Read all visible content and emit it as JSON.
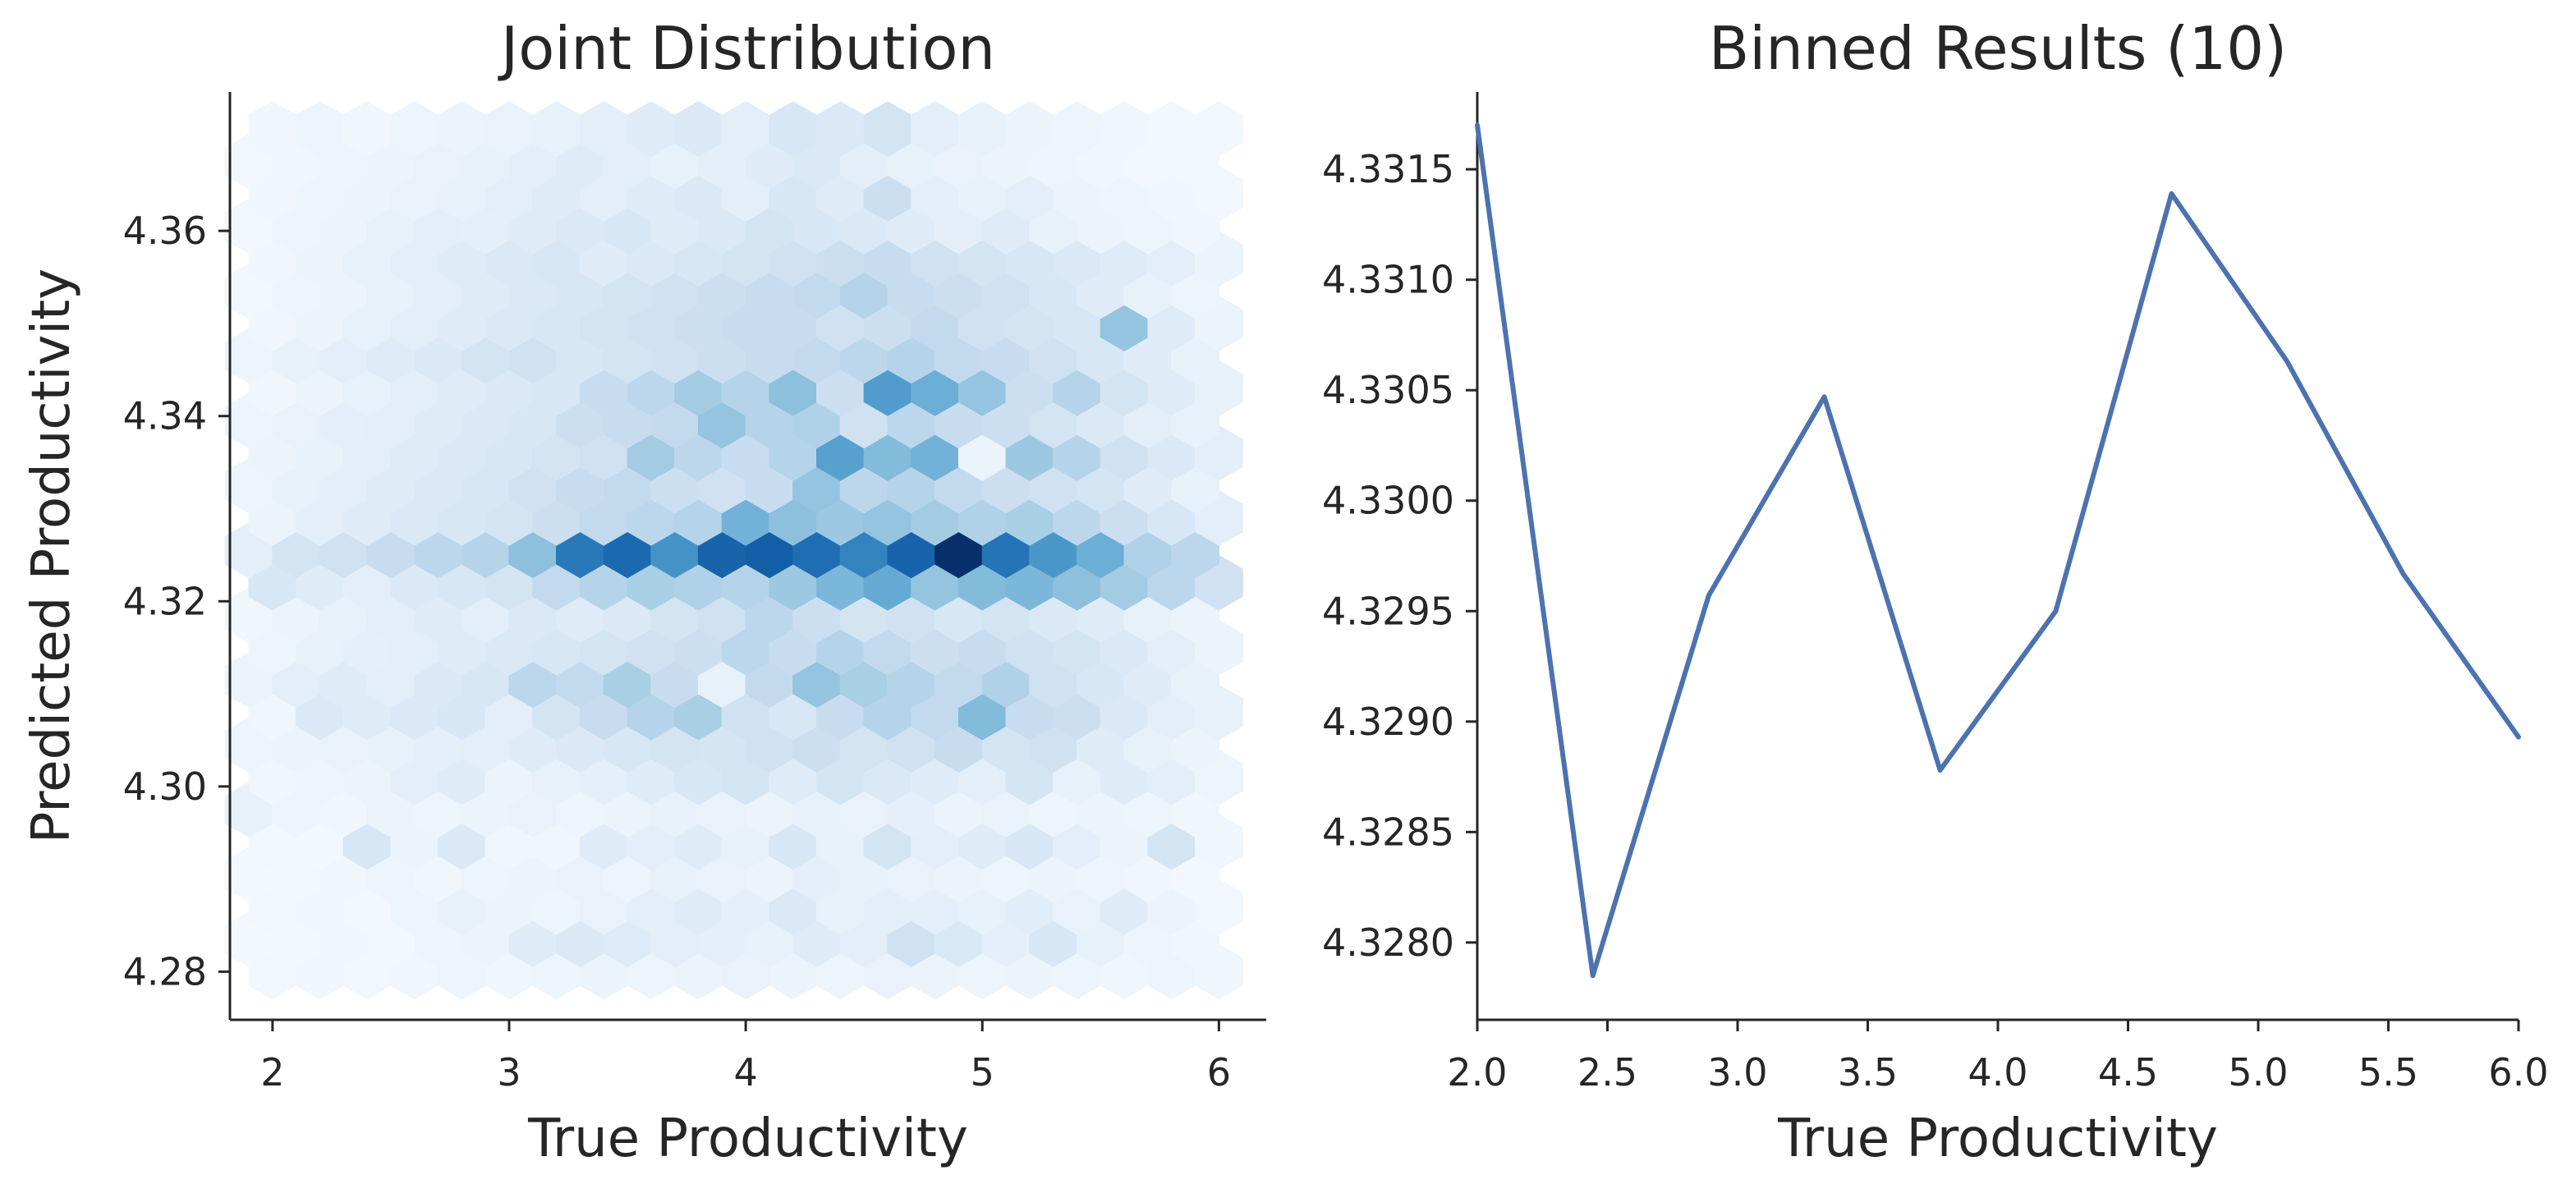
{
  "chart_data": [
    {
      "type": "heatmap",
      "subtype": "hexbin",
      "title": "Joint Distribution",
      "xlabel": "True Productivity",
      "ylabel": "Predicted Productivity",
      "xlim": [
        1.82,
        6.2
      ],
      "ylim": [
        4.2748,
        4.375
      ],
      "xticks": [
        2,
        3,
        4,
        5,
        6
      ],
      "xtick_labels": [
        "2",
        "3",
        "4",
        "5",
        "6"
      ],
      "yticks": [
        4.28,
        4.3,
        4.32,
        4.34,
        4.36
      ],
      "ytick_labels": [
        "4.28",
        "4.30",
        "4.32",
        "4.34",
        "4.36"
      ],
      "colormap": [
        "#f7fbff",
        "#deebf7",
        "#c6dbef",
        "#9ecae1",
        "#6baed6",
        "#4292c6",
        "#2171b5",
        "#08519c",
        "#08306b"
      ],
      "grid": {
        "x_start": 2.0,
        "dx": 0.2,
        "cols": 21,
        "y_start": 4.28,
        "dy": 0.0035,
        "rows": 27
      },
      "intensity_rows": [
        [
          0.03,
          0.04,
          0.03,
          0.04,
          0.05,
          0.04,
          0.05,
          0.06,
          0.05,
          0.06,
          0.07,
          0.06,
          0.05,
          0.07,
          0.06,
          0.05,
          0.06,
          0.05,
          0.04,
          0.05,
          0.04
        ],
        [
          0.02,
          0.03,
          0.04,
          0.03,
          0.05,
          0.06,
          0.12,
          0.14,
          0.13,
          0.1,
          0.09,
          0.08,
          0.12,
          0.1,
          0.2,
          0.15,
          0.09,
          0.16,
          0.08,
          0.05,
          0.04
        ],
        [
          0.03,
          0.04,
          0.03,
          0.05,
          0.08,
          0.06,
          0.05,
          0.07,
          0.1,
          0.12,
          0.09,
          0.14,
          0.08,
          0.1,
          0.09,
          0.08,
          0.11,
          0.07,
          0.12,
          0.06,
          0.03
        ],
        [
          0.02,
          0.03,
          0.04,
          0.05,
          0.04,
          0.05,
          0.06,
          0.07,
          0.05,
          0.08,
          0.07,
          0.06,
          0.09,
          0.08,
          0.07,
          0.06,
          0.05,
          0.06,
          0.05,
          0.04,
          0.03
        ],
        [
          0.03,
          0.02,
          0.16,
          0.06,
          0.14,
          0.04,
          0.04,
          0.12,
          0.1,
          0.12,
          0.08,
          0.16,
          0.08,
          0.18,
          0.1,
          0.12,
          0.16,
          0.1,
          0.06,
          0.18,
          0.04
        ],
        [
          0.08,
          0.05,
          0.04,
          0.06,
          0.05,
          0.06,
          0.07,
          0.05,
          0.06,
          0.08,
          0.07,
          0.06,
          0.08,
          0.07,
          0.09,
          0.06,
          0.07,
          0.05,
          0.06,
          0.05,
          0.04
        ],
        [
          0.04,
          0.05,
          0.06,
          0.1,
          0.12,
          0.06,
          0.08,
          0.09,
          0.12,
          0.16,
          0.18,
          0.12,
          0.18,
          0.14,
          0.12,
          0.1,
          0.18,
          0.08,
          0.12,
          0.1,
          0.05
        ],
        [
          0.05,
          0.06,
          0.07,
          0.08,
          0.09,
          0.1,
          0.12,
          0.14,
          0.16,
          0.18,
          0.17,
          0.2,
          0.22,
          0.18,
          0.2,
          0.24,
          0.18,
          0.2,
          0.12,
          0.08,
          0.06
        ],
        [
          0.04,
          0.14,
          0.12,
          0.14,
          0.16,
          0.1,
          0.18,
          0.24,
          0.3,
          0.34,
          0.2,
          0.16,
          0.24,
          0.3,
          0.26,
          0.44,
          0.24,
          0.22,
          0.14,
          0.1,
          0.08
        ],
        [
          0.06,
          0.1,
          0.12,
          0.1,
          0.14,
          0.16,
          0.28,
          0.26,
          0.34,
          0.24,
          0.08,
          0.26,
          0.4,
          0.34,
          0.3,
          0.26,
          0.32,
          0.2,
          0.16,
          0.12,
          0.08
        ],
        [
          0.05,
          0.08,
          0.09,
          0.1,
          0.12,
          0.14,
          0.16,
          0.18,
          0.2,
          0.22,
          0.28,
          0.24,
          0.3,
          0.26,
          0.22,
          0.24,
          0.2,
          0.18,
          0.14,
          0.1,
          0.06
        ],
        [
          0.04,
          0.06,
          0.08,
          0.1,
          0.12,
          0.1,
          0.14,
          0.12,
          0.14,
          0.18,
          0.2,
          0.28,
          0.22,
          0.18,
          0.2,
          0.16,
          0.18,
          0.14,
          0.12,
          0.08,
          0.06
        ],
        [
          0.16,
          0.12,
          0.1,
          0.14,
          0.16,
          0.18,
          0.26,
          0.3,
          0.34,
          0.32,
          0.3,
          0.38,
          0.46,
          0.52,
          0.4,
          0.44,
          0.46,
          0.42,
          0.36,
          0.28,
          0.2
        ],
        [
          0.1,
          0.18,
          0.2,
          0.24,
          0.28,
          0.3,
          0.42,
          0.72,
          0.78,
          0.62,
          0.8,
          0.82,
          0.76,
          0.68,
          0.8,
          1.0,
          0.74,
          0.6,
          0.5,
          0.32,
          0.28
        ],
        [
          0.06,
          0.1,
          0.12,
          0.14,
          0.16,
          0.18,
          0.22,
          0.26,
          0.28,
          0.3,
          0.48,
          0.42,
          0.38,
          0.4,
          0.36,
          0.32,
          0.34,
          0.28,
          0.22,
          0.16,
          0.1
        ],
        [
          0.05,
          0.08,
          0.1,
          0.12,
          0.14,
          0.16,
          0.2,
          0.24,
          0.26,
          0.22,
          0.2,
          0.24,
          0.4,
          0.28,
          0.3,
          0.26,
          0.22,
          0.2,
          0.18,
          0.12,
          0.08
        ],
        [
          0.06,
          0.08,
          0.1,
          0.12,
          0.14,
          0.16,
          0.18,
          0.2,
          0.36,
          0.28,
          0.24,
          0.3,
          0.56,
          0.44,
          0.48,
          0.06,
          0.38,
          0.3,
          0.2,
          0.14,
          0.1
        ],
        [
          0.05,
          0.07,
          0.09,
          0.1,
          0.12,
          0.14,
          0.16,
          0.22,
          0.24,
          0.26,
          0.4,
          0.3,
          0.32,
          0.2,
          0.28,
          0.24,
          0.22,
          0.18,
          0.14,
          0.1,
          0.08
        ],
        [
          0.04,
          0.06,
          0.08,
          0.1,
          0.12,
          0.14,
          0.16,
          0.24,
          0.28,
          0.36,
          0.3,
          0.42,
          0.22,
          0.58,
          0.5,
          0.4,
          0.22,
          0.3,
          0.18,
          0.12,
          0.08
        ],
        [
          0.05,
          0.08,
          0.1,
          0.12,
          0.14,
          0.18,
          0.2,
          0.16,
          0.18,
          0.2,
          0.22,
          0.24,
          0.26,
          0.28,
          0.3,
          0.26,
          0.24,
          0.2,
          0.16,
          0.12,
          0.08
        ],
        [
          0.04,
          0.06,
          0.08,
          0.1,
          0.12,
          0.14,
          0.16,
          0.18,
          0.2,
          0.22,
          0.24,
          0.24,
          0.2,
          0.22,
          0.26,
          0.2,
          0.18,
          0.16,
          0.4,
          0.12,
          0.06
        ],
        [
          0.03,
          0.05,
          0.06,
          0.08,
          0.1,
          0.12,
          0.14,
          0.16,
          0.18,
          0.2,
          0.22,
          0.24,
          0.26,
          0.3,
          0.24,
          0.22,
          0.2,
          0.16,
          0.12,
          0.08,
          0.05
        ],
        [
          0.04,
          0.06,
          0.08,
          0.1,
          0.12,
          0.14,
          0.16,
          0.12,
          0.14,
          0.16,
          0.18,
          0.2,
          0.22,
          0.24,
          0.2,
          0.18,
          0.16,
          0.14,
          0.12,
          0.1,
          0.06
        ],
        [
          0.03,
          0.05,
          0.06,
          0.08,
          0.1,
          0.09,
          0.12,
          0.14,
          0.16,
          0.12,
          0.14,
          0.18,
          0.16,
          0.14,
          0.12,
          0.1,
          0.12,
          0.08,
          0.06,
          0.05,
          0.04
        ],
        [
          0.04,
          0.05,
          0.06,
          0.07,
          0.08,
          0.1,
          0.12,
          0.1,
          0.12,
          0.14,
          0.1,
          0.16,
          0.12,
          0.22,
          0.1,
          0.08,
          0.1,
          0.06,
          0.05,
          0.04,
          0.03
        ],
        [
          0.03,
          0.04,
          0.05,
          0.06,
          0.07,
          0.08,
          0.1,
          0.12,
          0.1,
          0.08,
          0.1,
          0.12,
          0.14,
          0.1,
          0.08,
          0.07,
          0.06,
          0.05,
          0.04,
          0.03,
          0.03
        ],
        [
          0.04,
          0.05,
          0.04,
          0.05,
          0.06,
          0.07,
          0.08,
          0.1,
          0.12,
          0.14,
          0.1,
          0.16,
          0.14,
          0.18,
          0.1,
          0.08,
          0.06,
          0.05,
          0.04,
          0.03,
          0.03
        ]
      ]
    },
    {
      "type": "line",
      "title": "Binned Results (10)",
      "xlabel": "True Productivity",
      "ylabel": "",
      "xlim": [
        2.0,
        6.0
      ],
      "ylim": [
        4.32765,
        4.33185
      ],
      "xticks": [
        2.0,
        2.5,
        3.0,
        3.5,
        4.0,
        4.5,
        5.0,
        5.5,
        6.0
      ],
      "xtick_labels": [
        "2.0",
        "2.5",
        "3.0",
        "3.5",
        "4.0",
        "4.5",
        "5.0",
        "5.5",
        "6.0"
      ],
      "yticks": [
        4.328,
        4.3285,
        4.329,
        4.3295,
        4.33,
        4.3305,
        4.331,
        4.3315
      ],
      "ytick_labels": [
        "4.3280",
        "4.3285",
        "4.3290",
        "4.3295",
        "4.3300",
        "4.3305",
        "4.3310",
        "4.3315"
      ],
      "series": [
        {
          "color": "#4c72b0",
          "x": [
            2.0,
            2.444,
            2.889,
            3.333,
            3.778,
            4.222,
            4.667,
            5.111,
            5.556,
            6.0
          ],
          "y": [
            4.3317,
            4.32785,
            4.32957,
            4.33047,
            4.32878,
            4.3295,
            4.33139,
            4.33063,
            4.32967,
            4.32893
          ]
        }
      ]
    }
  ]
}
